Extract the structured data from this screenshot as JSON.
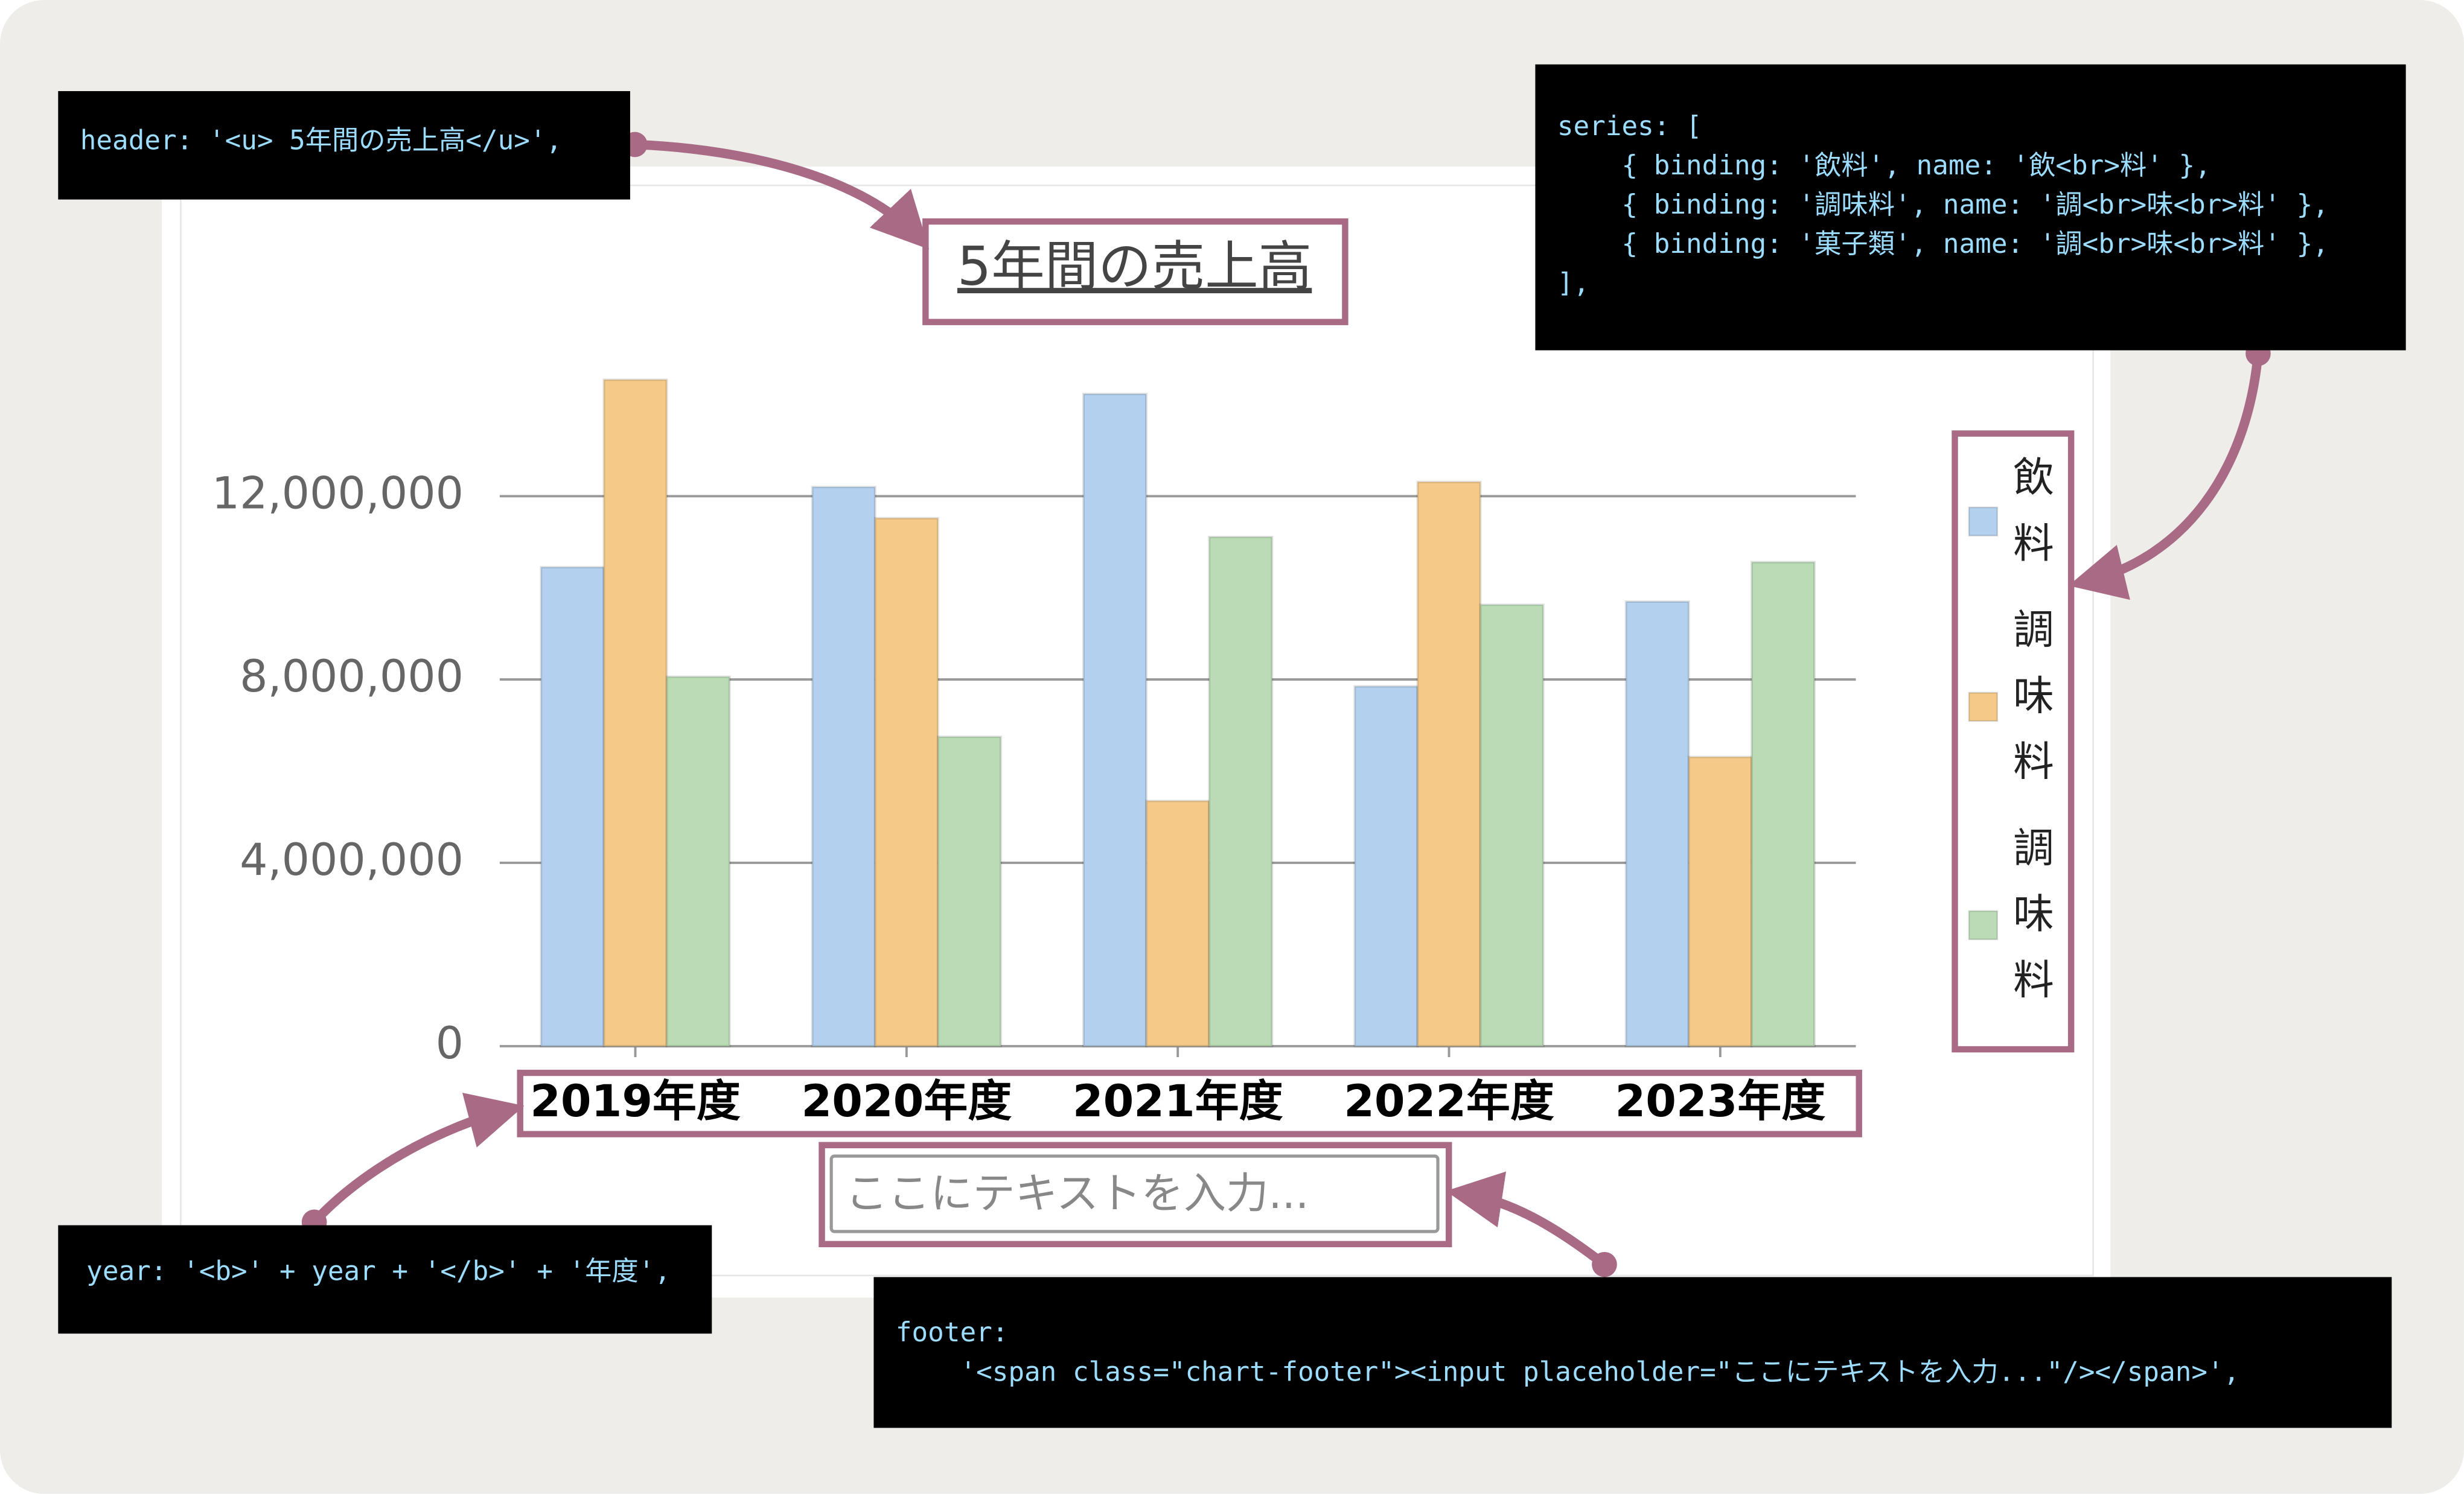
{
  "chart_data": {
    "type": "bar",
    "title": "5年間の売上高",
    "categories": [
      "2019年度",
      "2020年度",
      "2021年度",
      "2022年度",
      "2023年度"
    ],
    "series": [
      {
        "name": "飲料",
        "color": "#b3d1ef",
        "values": [
          10450000,
          12200000,
          14230000,
          7850000,
          9700000
        ]
      },
      {
        "name": "調味料",
        "color": "#f5c987",
        "values": [
          14540000,
          11520000,
          5350000,
          12310000,
          6310000
        ]
      },
      {
        "name": "調味料",
        "color": "#b9dcb4",
        "values": [
          8060000,
          6750000,
          11110000,
          9630000,
          10560000
        ]
      }
    ],
    "ylim": [
      0,
      14600000
    ],
    "yticks": [
      0,
      {
        "value": 4000000,
        "label": "4,000,000"
      },
      {
        "value": 8000000,
        "label": "8,000,000"
      },
      {
        "value": 12000000,
        "label": "12,000,000"
      }
    ],
    "grid": true,
    "legend": "right",
    "footer_placeholder": "ここにテキストを入力..."
  },
  "annotations": {
    "header": [
      "header: '<u> 5年間の売上高</u>',"
    ],
    "series": [
      "series: [",
      "    { binding: '飲料', name: '飲<br>料' },",
      "    { binding: '調味料', name: '調<br>味<br>料' },",
      "    { binding: '菓子類', name: '調<br>味<br>料' },",
      "],"
    ],
    "year": [
      "year: '<b>' + year + '</b>' + '年度',"
    ],
    "footer": [
      "footer:",
      "    '<span class=\"chart-footer\"><input placeholder=\"ここにテキストを入力...\"/></span>',"
    ]
  }
}
